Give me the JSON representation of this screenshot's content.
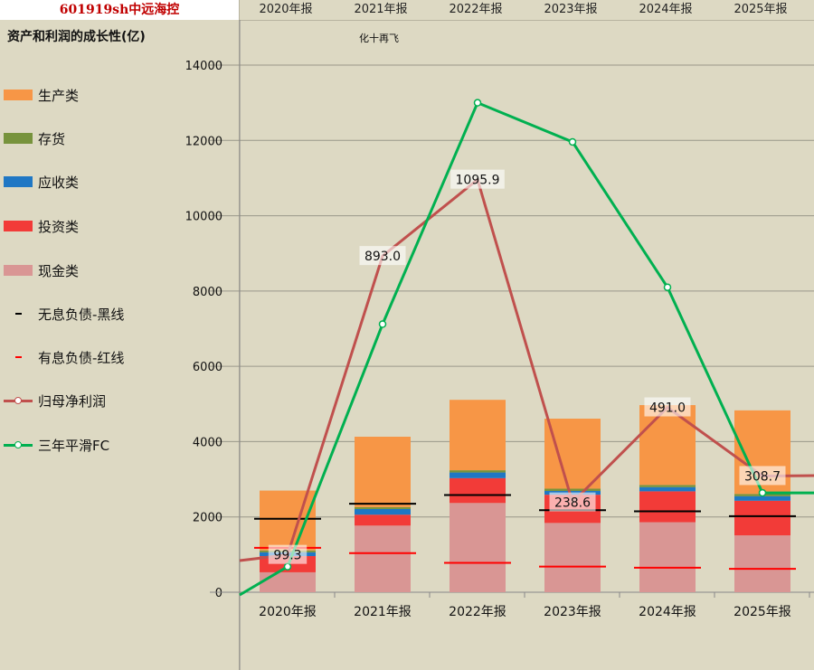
{
  "ticker": "601919sh中远海控",
  "header_years": [
    "2020年报",
    "2021年报",
    "2022年报",
    "2023年报",
    "2024年报",
    "2025年报"
  ],
  "subtitle": "资产和利润的成长性(亿)",
  "note": "化十再飞",
  "legend": [
    {
      "label": "生产类",
      "kind": "bar",
      "color": "#f79646"
    },
    {
      "label": "存货",
      "kind": "bar",
      "color": "#77933c"
    },
    {
      "label": "应收类",
      "kind": "bar",
      "color": "#1f77c4"
    },
    {
      "label": "投资类",
      "kind": "bar",
      "color": "#f23b38"
    },
    {
      "label": "现金类",
      "kind": "bar",
      "color": "#d99694"
    },
    {
      "label": "无息负债-黑线",
      "kind": "dash",
      "color": "#000000"
    },
    {
      "label": "有息负债-红线",
      "kind": "dash",
      "color": "#ff0000"
    },
    {
      "label": "归母净利润",
      "kind": "line",
      "color": "#c0504d"
    },
    {
      "label": "三年平滑FC",
      "kind": "line",
      "color": "#00b050"
    }
  ],
  "chart_data": {
    "type": "bar",
    "stacked": true,
    "categories": [
      "2020年报",
      "2021年报",
      "2022年报",
      "2023年报",
      "2024年报",
      "2025年报"
    ],
    "ylim": [
      0,
      14000
    ],
    "yticks": [
      0,
      2000,
      4000,
      6000,
      8000,
      10000,
      12000,
      14000
    ],
    "grid": true,
    "series": [
      {
        "name": "现金类",
        "color": "#d99694",
        "values": [
          530,
          1770,
          2370,
          1840,
          1860,
          1510
        ]
      },
      {
        "name": "投资类",
        "color": "#f23b38",
        "values": [
          430,
          290,
          660,
          750,
          820,
          920
        ]
      },
      {
        "name": "应收类",
        "color": "#1f77c4",
        "values": [
          100,
          150,
          150,
          100,
          110,
          120
        ]
      },
      {
        "name": "存货",
        "color": "#77933c",
        "values": [
          50,
          50,
          60,
          60,
          60,
          60
        ]
      },
      {
        "name": "生产类",
        "color": "#f79646",
        "values": [
          1590,
          1870,
          1870,
          1860,
          2120,
          2220
        ]
      }
    ],
    "no_interest_debt": {
      "name": "无息负债-黑线",
      "color": "#000000",
      "values": [
        1950,
        2350,
        2580,
        2180,
        2150,
        2020
      ]
    },
    "interest_debt": {
      "name": "有息负债-红线",
      "color": "#ff0000",
      "values": [
        1180,
        1040,
        780,
        680,
        650,
        620
      ]
    },
    "net_profit": {
      "name": "归母净利润",
      "color": "#c0504d",
      "values": [
        99.3,
        893.0,
        1095.9,
        238.6,
        491.0,
        308.7
      ],
      "labels": [
        "99.3",
        "893.0",
        "1095.9",
        "238.6",
        "491.0",
        "308.7"
      ],
      "scale_max": 1400
    },
    "smoothed_fc": {
      "name": "三年平滑FC",
      "color": "#00b050",
      "values": [
        680,
        7120,
        13000,
        11960,
        8100,
        2640
      ]
    }
  }
}
